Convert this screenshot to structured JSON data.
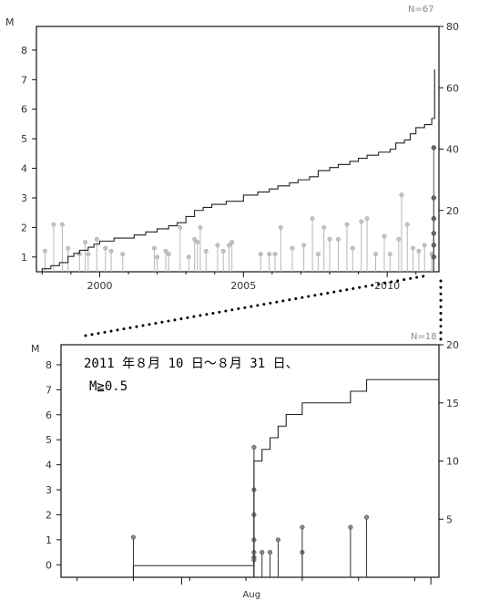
{
  "charts": [
    {
      "id": "top",
      "n_label": "N=67",
      "m_axis_title": "M",
      "left_ticks": [
        "1",
        "2",
        "3",
        "4",
        "5",
        "6",
        "7",
        "8"
      ],
      "right_ticks": [
        "20",
        "40",
        "60",
        "80"
      ],
      "x_ticks": [
        "2000",
        "2005",
        "2010"
      ]
    },
    {
      "id": "bottom",
      "n_label": "N=18",
      "m_axis_title": "M",
      "left_ticks": [
        "0",
        "1",
        "2",
        "3",
        "4",
        "5",
        "6",
        "7",
        "8"
      ],
      "right_ticks": [
        "5",
        "10",
        "15",
        "20"
      ],
      "x_ticks": [
        "Aug"
      ],
      "annotation_line1": "2011 年８月 10 日～８月 31 日、",
      "annotation_line2": "M≧0.5"
    }
  ],
  "chart_data": [
    {
      "type": "scatter",
      "subtype": "magnitude-time stem plot with cumulative count step line",
      "n": 67,
      "ylabel": "M",
      "ylim": [
        0.5,
        8.8
      ],
      "y2lim": [
        0,
        80
      ],
      "xlim": [
        1997.8,
        2011.8
      ],
      "magnitude_events": [
        {
          "x": 1998.4,
          "y": 2.1
        },
        {
          "x": 1998.7,
          "y": 2.1
        },
        {
          "x": 1998.9,
          "y": 1.3
        },
        {
          "x": 1998.1,
          "y": 1.2
        },
        {
          "x": 1999.3,
          "y": 1.1
        },
        {
          "x": 1999.5,
          "y": 1.5
        },
        {
          "x": 1999.9,
          "y": 1.6
        },
        {
          "x": 1999.6,
          "y": 1.1
        },
        {
          "x": 2000.2,
          "y": 1.3
        },
        {
          "x": 2000.4,
          "y": 1.2
        },
        {
          "x": 2000.8,
          "y": 1.1
        },
        {
          "x": 2001.9,
          "y": 1.3
        },
        {
          "x": 2002.0,
          "y": 1.0
        },
        {
          "x": 2002.3,
          "y": 1.2
        },
        {
          "x": 2002.4,
          "y": 1.1
        },
        {
          "x": 2002.8,
          "y": 2.0
        },
        {
          "x": 2003.1,
          "y": 1.0
        },
        {
          "x": 2003.3,
          "y": 1.6
        },
        {
          "x": 2003.4,
          "y": 1.5
        },
        {
          "x": 2003.5,
          "y": 2.0
        },
        {
          "x": 2003.7,
          "y": 1.2
        },
        {
          "x": 2004.1,
          "y": 1.4
        },
        {
          "x": 2004.3,
          "y": 1.2
        },
        {
          "x": 2004.5,
          "y": 1.4
        },
        {
          "x": 2004.6,
          "y": 1.5
        },
        {
          "x": 2005.6,
          "y": 1.1
        },
        {
          "x": 2005.9,
          "y": 1.1
        },
        {
          "x": 2006.1,
          "y": 1.1
        },
        {
          "x": 2006.3,
          "y": 2.0
        },
        {
          "x": 2006.7,
          "y": 1.3
        },
        {
          "x": 2007.1,
          "y": 1.4
        },
        {
          "x": 2007.4,
          "y": 2.3
        },
        {
          "x": 2007.6,
          "y": 1.1
        },
        {
          "x": 2007.8,
          "y": 2.0
        },
        {
          "x": 2008.0,
          "y": 1.6
        },
        {
          "x": 2008.3,
          "y": 1.6
        },
        {
          "x": 2008.6,
          "y": 2.1
        },
        {
          "x": 2008.8,
          "y": 1.3
        },
        {
          "x": 2009.1,
          "y": 2.2
        },
        {
          "x": 2009.3,
          "y": 2.3
        },
        {
          "x": 2009.6,
          "y": 1.1
        },
        {
          "x": 2009.9,
          "y": 1.7
        },
        {
          "x": 2010.1,
          "y": 1.1
        },
        {
          "x": 2010.4,
          "y": 1.6
        },
        {
          "x": 2010.5,
          "y": 3.1
        },
        {
          "x": 2010.7,
          "y": 2.1
        },
        {
          "x": 2010.9,
          "y": 1.3
        },
        {
          "x": 2011.1,
          "y": 1.2
        },
        {
          "x": 2011.3,
          "y": 1.4
        },
        {
          "x": 2011.55,
          "y": 1.1
        }
      ],
      "recent_events": [
        {
          "x": 2011.62,
          "y": 4.7
        },
        {
          "x": 2011.62,
          "y": 3.0
        },
        {
          "x": 2011.62,
          "y": 2.3
        },
        {
          "x": 2011.62,
          "y": 1.8
        },
        {
          "x": 2011.62,
          "y": 1.4
        },
        {
          "x": 2011.62,
          "y": 1.0
        }
      ],
      "cumulative_count": [
        [
          1997.9,
          0
        ],
        [
          1998.0,
          1
        ],
        [
          1998.3,
          2
        ],
        [
          1998.6,
          3
        ],
        [
          1998.9,
          5
        ],
        [
          1999.1,
          6
        ],
        [
          1999.3,
          7
        ],
        [
          1999.6,
          8
        ],
        [
          1999.8,
          9
        ],
        [
          2000.0,
          10
        ],
        [
          2000.5,
          11
        ],
        [
          2001.2,
          12
        ],
        [
          2001.6,
          13
        ],
        [
          2002.0,
          14
        ],
        [
          2002.4,
          15
        ],
        [
          2002.7,
          16
        ],
        [
          2003.0,
          18
        ],
        [
          2003.3,
          20
        ],
        [
          2003.6,
          21
        ],
        [
          2003.9,
          22
        ],
        [
          2004.4,
          23
        ],
        [
          2005.0,
          25
        ],
        [
          2005.5,
          26
        ],
        [
          2005.9,
          27
        ],
        [
          2006.2,
          28
        ],
        [
          2006.6,
          29
        ],
        [
          2006.9,
          30
        ],
        [
          2007.3,
          31
        ],
        [
          2007.6,
          33
        ],
        [
          2008.0,
          34
        ],
        [
          2008.3,
          35
        ],
        [
          2008.7,
          36
        ],
        [
          2009.0,
          37
        ],
        [
          2009.3,
          38
        ],
        [
          2009.7,
          39
        ],
        [
          2010.1,
          40
        ],
        [
          2010.3,
          42
        ],
        [
          2010.6,
          43
        ],
        [
          2010.8,
          45
        ],
        [
          2011.0,
          47
        ],
        [
          2011.3,
          48
        ],
        [
          2011.55,
          50
        ],
        [
          2011.65,
          66
        ]
      ]
    },
    {
      "type": "scatter",
      "subtype": "magnitude-time stem plot with cumulative count step line",
      "n": 18,
      "ylabel": "M",
      "ylim": [
        -0.5,
        8.8
      ],
      "y2lim": [
        0,
        20
      ],
      "xlim": [
        "2011-07-17",
        "2011-09-02"
      ],
      "magnitude_events": [
        {
          "x": "2011-07-26",
          "y": 1.1
        },
        {
          "x": "2011-08-10",
          "y": 4.7
        },
        {
          "x": "2011-08-10",
          "y": 3.0
        },
        {
          "x": "2011-08-10",
          "y": 2.0
        },
        {
          "x": "2011-08-10",
          "y": 1.0
        },
        {
          "x": "2011-08-10",
          "y": 0.5
        },
        {
          "x": "2011-08-10",
          "y": 0.3
        },
        {
          "x": "2011-08-10",
          "y": 0.2
        },
        {
          "x": "2011-08-11",
          "y": 0.5
        },
        {
          "x": "2011-08-12",
          "y": 0.5
        },
        {
          "x": "2011-08-13",
          "y": 1.0
        },
        {
          "x": "2011-08-16",
          "y": 0.5
        },
        {
          "x": "2011-08-16",
          "y": 1.5
        },
        {
          "x": "2011-08-22",
          "y": 1.5
        },
        {
          "x": "2011-08-24",
          "y": 1.9
        }
      ],
      "cumulative_count": [
        [
          "2011-07-26",
          0
        ],
        [
          "2011-07-26",
          1
        ],
        [
          "2011-08-10",
          1
        ],
        [
          "2011-08-10",
          10
        ],
        [
          "2011-08-11",
          11
        ],
        [
          "2011-08-12",
          12
        ],
        [
          "2011-08-13",
          13
        ],
        [
          "2011-08-14",
          14
        ],
        [
          "2011-08-16",
          15
        ],
        [
          "2011-08-22",
          16
        ],
        [
          "2011-08-24",
          17
        ],
        [
          "2011-09-02",
          17
        ]
      ]
    }
  ]
}
